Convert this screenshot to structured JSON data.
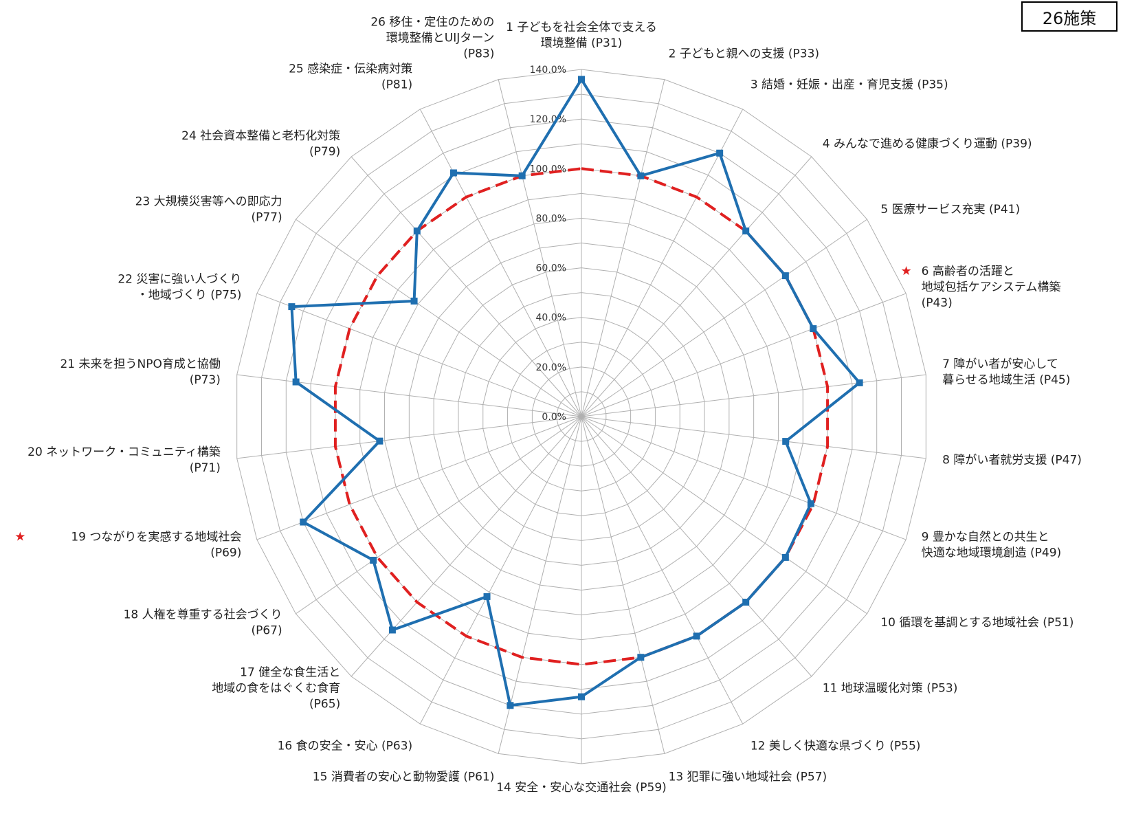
{
  "badge_label": "26施策",
  "chart_data": {
    "type": "radar",
    "title": "",
    "tick_labels": [
      "0.0%",
      "20.0%",
      "40.0%",
      "60.0%",
      "80.0%",
      "100.0%",
      "120.0%",
      "140.0%"
    ],
    "tick_values": [
      0,
      20,
      40,
      60,
      80,
      100,
      120,
      140
    ],
    "rmax": 140,
    "grid": true,
    "categories": [
      {
        "lines": [
          "1 子どもを社会全体で支える",
          "環境整備 (P31)"
        ],
        "star": false
      },
      {
        "lines": [
          "2 子どもと親への支援 (P33)"
        ],
        "star": false
      },
      {
        "lines": [
          "3 結婚・妊娠・出産・育児支援 (P35)"
        ],
        "star": false
      },
      {
        "lines": [
          "4 みんなで進める健康づくり運動 (P39)"
        ],
        "star": false
      },
      {
        "lines": [
          "5 医療サービス充実 (P41)"
        ],
        "star": false
      },
      {
        "lines": [
          "6 高齢者の活躍と",
          "地域包括ケアシステム構築",
          "(P43)"
        ],
        "star": true
      },
      {
        "lines": [
          "7 障がい者が安心して",
          "暮らせる地域生活 (P45)"
        ],
        "star": false
      },
      {
        "lines": [
          "8 障がい者就労支援 (P47)"
        ],
        "star": false
      },
      {
        "lines": [
          "9 豊かな自然との共生と",
          "快適な地域環境創造 (P49)"
        ],
        "star": false
      },
      {
        "lines": [
          "10 循環を基調とする地域社会 (P51)"
        ],
        "star": false
      },
      {
        "lines": [
          "11 地球温暖化対策 (P53)"
        ],
        "star": false
      },
      {
        "lines": [
          "12 美しく快適な県づくり (P55)"
        ],
        "star": false
      },
      {
        "lines": [
          "13 犯罪に強い地域社会 (P57)"
        ],
        "star": false
      },
      {
        "lines": [
          "14 安全・安心な交通社会 (P59)"
        ],
        "star": false
      },
      {
        "lines": [
          "15 消費者の安心と動物愛護 (P61)"
        ],
        "star": false
      },
      {
        "lines": [
          "16 食の安全・安心 (P63)"
        ],
        "star": false
      },
      {
        "lines": [
          "17 健全な食生活と",
          "地域の食をはぐくむ食育",
          "(P65)"
        ],
        "star": false
      },
      {
        "lines": [
          "18 人権を尊重する社会づくり",
          "(P67)"
        ],
        "star": false
      },
      {
        "lines": [
          "19 つながりを実感する地域社会",
          "(P69)"
        ],
        "star": true
      },
      {
        "lines": [
          "20 ネットワーク・コミュニティ構築",
          "(P71)"
        ],
        "star": false
      },
      {
        "lines": [
          "21 未来を担うNPO育成と協働",
          "(P73)"
        ],
        "star": false
      },
      {
        "lines": [
          "22 災害に強い人づくり",
          "・地域づくり (P75)"
        ],
        "star": false
      },
      {
        "lines": [
          "23 大規模災害等への即応力",
          "(P77)"
        ],
        "star": false
      },
      {
        "lines": [
          "24 社会資本整備と老朽化対策",
          "(P79)"
        ],
        "star": false
      },
      {
        "lines": [
          "25 感染症・伝染病対策",
          "(P81)"
        ],
        "star": false
      },
      {
        "lines": [
          "26 移住・定住のための",
          "環境整備とUIJターン",
          "(P83)"
        ],
        "star": false
      }
    ],
    "series": [
      {
        "values": [
          136,
          100,
          120,
          100,
          100,
          100,
          113,
          83,
          99,
          100,
          100,
          100,
          100,
          113,
          120,
          82,
          115,
          102,
          120,
          82,
          116,
          125,
          82,
          100,
          111,
          100
        ],
        "color": "#1f6fb0",
        "style": "solid"
      },
      {
        "values": [
          100,
          100,
          100,
          100,
          100,
          100,
          100,
          100,
          100,
          100,
          100,
          100,
          100,
          100,
          100,
          100,
          100,
          100,
          100,
          100,
          100,
          100,
          100,
          100,
          100,
          100
        ],
        "color": "#e02020",
        "style": "dashed"
      }
    ],
    "star_symbol": "★"
  }
}
